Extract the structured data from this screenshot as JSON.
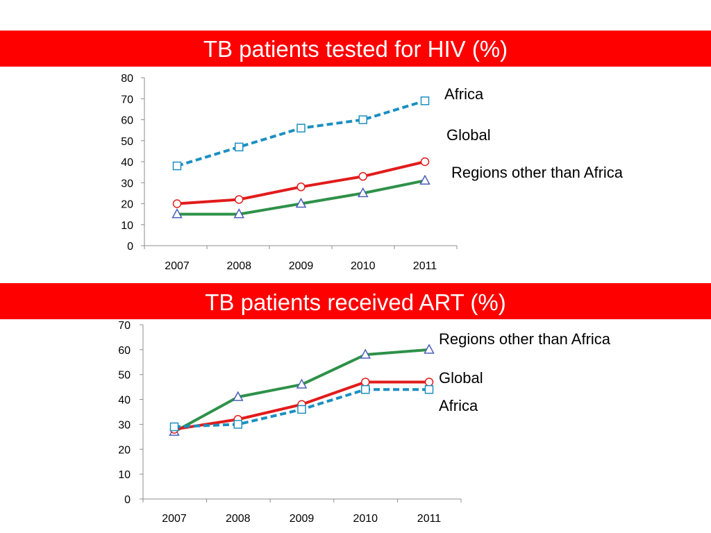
{
  "chart_data": [
    {
      "type": "line",
      "title": "TB patients tested for HIV (%)",
      "categories": [
        "2007",
        "2008",
        "2009",
        "2010",
        "2011"
      ],
      "ylim": [
        0,
        80
      ],
      "yticks": [
        0,
        10,
        20,
        30,
        40,
        50,
        60,
        70,
        80
      ],
      "grid": false,
      "legend": "direct labels at right",
      "series": [
        {
          "name": "Africa",
          "values": [
            38,
            47,
            56,
            60,
            69
          ],
          "color": "#1b8fc1",
          "style": "dashed",
          "marker": "square"
        },
        {
          "name": "Global",
          "values": [
            20,
            22,
            28,
            33,
            40
          ],
          "color": "#e21b1b",
          "style": "solid",
          "marker": "circle"
        },
        {
          "name": "Regions other than Africa",
          "values": [
            15,
            15,
            20,
            25,
            31
          ],
          "color": "#2e9149",
          "style": "solid",
          "marker": "triangle"
        }
      ]
    },
    {
      "type": "line",
      "title": "TB patients received ART (%)",
      "categories": [
        "2007",
        "2008",
        "2009",
        "2010",
        "2011"
      ],
      "ylim": [
        0,
        70
      ],
      "yticks": [
        0,
        10,
        20,
        30,
        40,
        50,
        60,
        70
      ],
      "grid": false,
      "legend": "direct labels at right",
      "series": [
        {
          "name": "Regions other than Africa",
          "values": [
            27,
            41,
            46,
            58,
            60
          ],
          "color": "#2e9149",
          "style": "solid",
          "marker": "triangle"
        },
        {
          "name": "Global",
          "values": [
            28,
            32,
            38,
            47,
            47
          ],
          "color": "#e21b1b",
          "style": "solid",
          "marker": "circle"
        },
        {
          "name": "Africa",
          "values": [
            29,
            30,
            36,
            44,
            44
          ],
          "color": "#1b8fc1",
          "style": "dashed",
          "marker": "square"
        }
      ]
    }
  ]
}
